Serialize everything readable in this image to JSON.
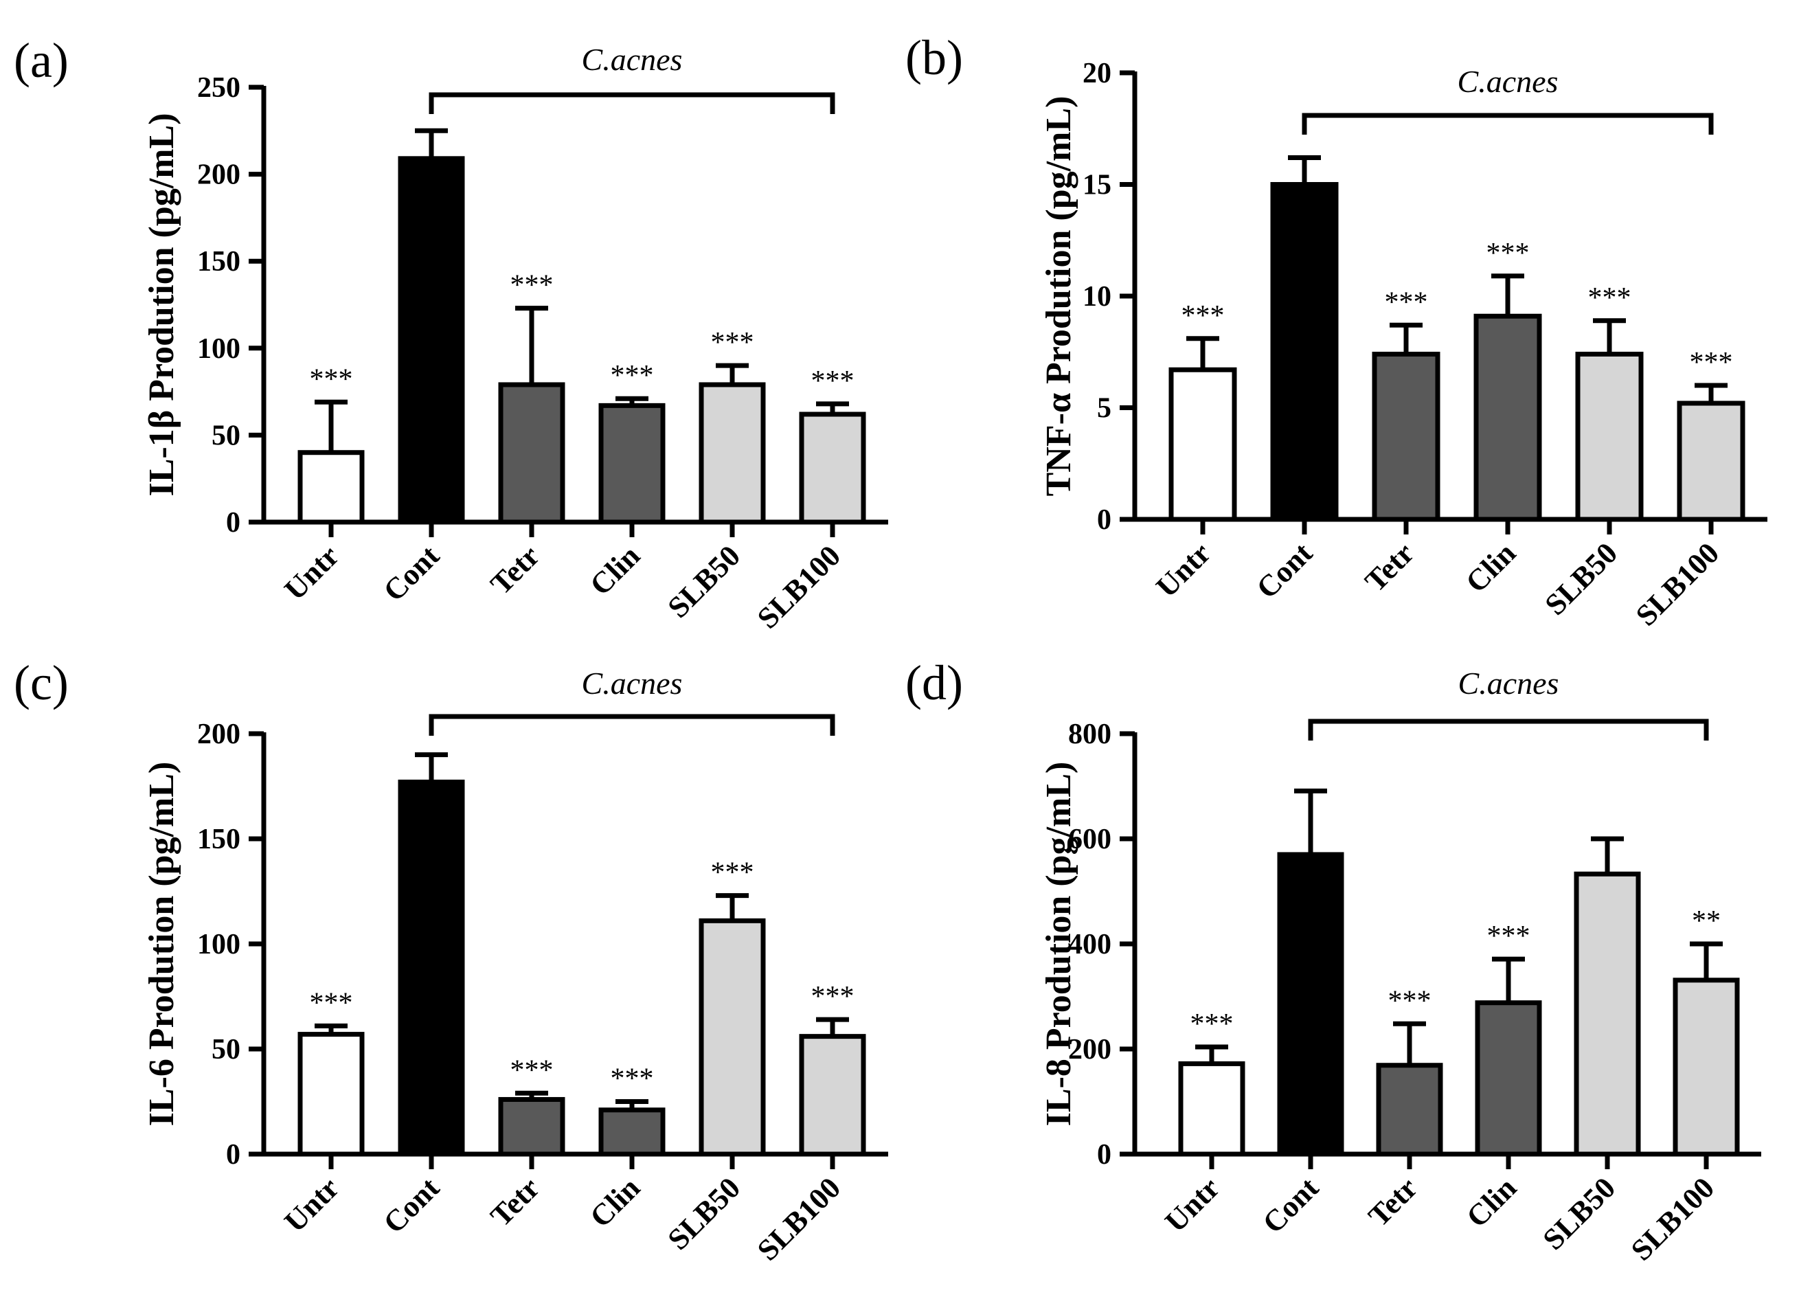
{
  "colors": {
    "Untr": "#ffffff",
    "Cont": "#000000",
    "Tetr": "#595959",
    "Clin": "#595959",
    "SLB50": "#d6d6d6",
    "SLB100": "#d6d6d6",
    "axis": "#000000"
  },
  "chart_data": [
    {
      "type": "bar",
      "panel": "(a)",
      "ylabel": "IL-1β Prodution (pg/mL)",
      "ylim": [
        0,
        250
      ],
      "yticks": [
        0,
        50,
        100,
        150,
        200,
        250
      ],
      "categories": [
        "Untr",
        "Cont",
        "Tetr",
        "Clin",
        "SLB50",
        "SLB100"
      ],
      "values": [
        40,
        209,
        79,
        67,
        79,
        62
      ],
      "errors": [
        29,
        16,
        44,
        4,
        11,
        6
      ],
      "significance": [
        "***",
        "",
        "***",
        "***",
        "***",
        "***"
      ],
      "bracket_label": "C.acnes"
    },
    {
      "type": "bar",
      "panel": "(b)",
      "ylabel": "TNF-α Prodution (pg/mL)",
      "ylim": [
        0,
        20
      ],
      "yticks": [
        0,
        5,
        10,
        15,
        20
      ],
      "categories": [
        "Untr",
        "Cont",
        "Tetr",
        "Clin",
        "SLB50",
        "SLB100"
      ],
      "values": [
        6.7,
        15.0,
        7.4,
        9.1,
        7.4,
        5.2
      ],
      "errors": [
        1.4,
        1.2,
        1.3,
        1.8,
        1.5,
        0.8
      ],
      "significance": [
        "***",
        "",
        "***",
        "***",
        "***",
        "***"
      ],
      "bracket_label": "C.acnes"
    },
    {
      "type": "bar",
      "panel": "(c)",
      "ylabel": "IL-6 Prodution (pg/mL)",
      "ylim": [
        0,
        200
      ],
      "yticks": [
        0,
        50,
        100,
        150,
        200
      ],
      "categories": [
        "Untr",
        "Cont",
        "Tetr",
        "Clin",
        "SLB50",
        "SLB100"
      ],
      "values": [
        57,
        177,
        26,
        21,
        111,
        56
      ],
      "errors": [
        4,
        13,
        3,
        4,
        12,
        8
      ],
      "significance": [
        "***",
        "",
        "***",
        "***",
        "***",
        "***"
      ],
      "bracket_label": "C.acnes"
    },
    {
      "type": "bar",
      "panel": "(d)",
      "ylabel": "IL-8 Prodution (pg/mL)",
      "ylim": [
        0,
        800
      ],
      "yticks": [
        0,
        200,
        400,
        600,
        800
      ],
      "categories": [
        "Untr",
        "Cont",
        "Tetr",
        "Clin",
        "SLB50",
        "SLB100"
      ],
      "values": [
        172,
        570,
        169,
        288,
        533,
        331
      ],
      "errors": [
        32,
        121,
        79,
        83,
        67,
        69
      ],
      "significance": [
        "***",
        "",
        "***",
        "***",
        "",
        "**"
      ],
      "bracket_label": "C.acnes"
    }
  ]
}
